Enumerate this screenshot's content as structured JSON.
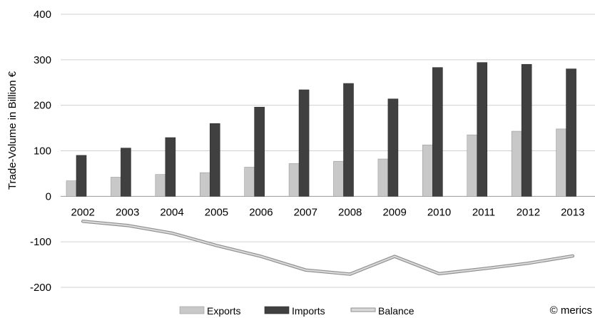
{
  "chart_data": {
    "type": "bar",
    "ylabel": "Trade-Volume in Billion €",
    "xlabel": "",
    "ylim": [
      -200,
      400
    ],
    "yticks": [
      400,
      300,
      200,
      100,
      0,
      -100,
      -200
    ],
    "grid": true,
    "legend_position": "bottom",
    "categories": [
      "2002",
      "2003",
      "2004",
      "2005",
      "2006",
      "2007",
      "2008",
      "2009",
      "2010",
      "2011",
      "2012",
      "2013"
    ],
    "series": [
      {
        "name": "Exports",
        "kind": "bar",
        "color": "#c8c8c8",
        "values": [
          34,
          42,
          48,
          52,
          64,
          72,
          77,
          82,
          113,
          135,
          143,
          148
        ]
      },
      {
        "name": "Imports",
        "kind": "bar",
        "color": "#404040",
        "values": [
          90,
          106,
          129,
          160,
          196,
          234,
          248,
          214,
          283,
          294,
          290,
          280
        ]
      },
      {
        "name": "Balance",
        "kind": "line",
        "color": "#b3b3b3",
        "values": [
          -55,
          -64,
          -81,
          -108,
          -132,
          -162,
          -171,
          -132,
          -170,
          -159,
          -147,
          -131
        ]
      }
    ],
    "copyright": "© merics"
  }
}
